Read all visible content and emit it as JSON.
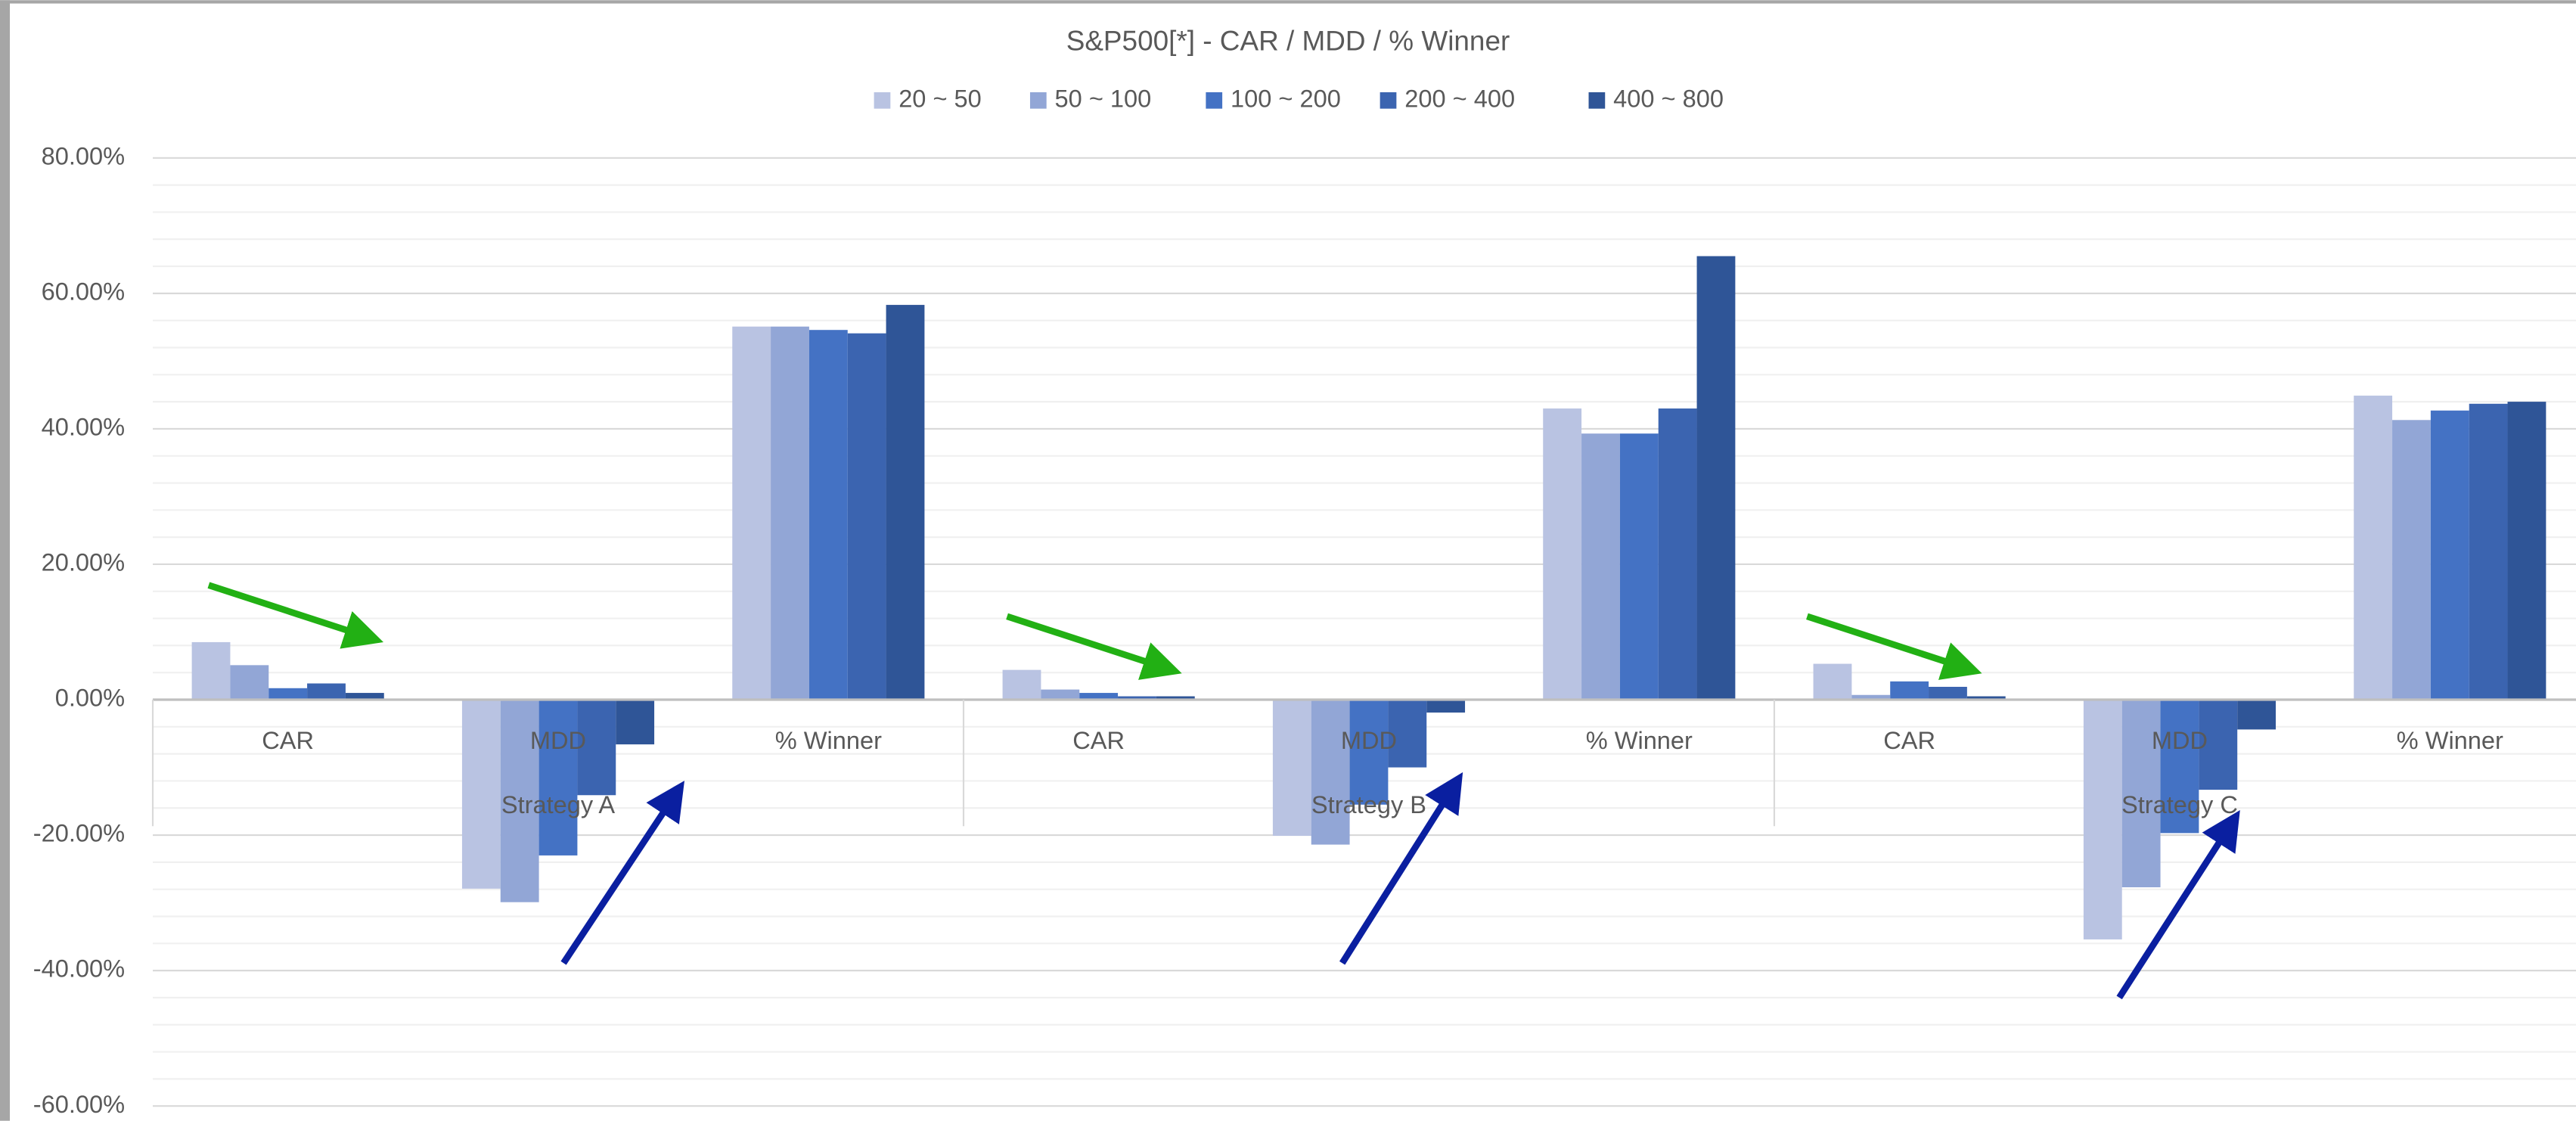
{
  "chart_data": {
    "type": "bar",
    "title": "S&P500[*] - CAR / MDD / % Winner",
    "groups": [
      "Strategy A",
      "Strategy B",
      "Strategy C"
    ],
    "categories": [
      "CAR",
      "MDD",
      "% Winner",
      "CAR",
      "MDD",
      "% Winner",
      "CAR",
      "MDD",
      "% Winner"
    ],
    "series": [
      {
        "name": "20 ~ 50",
        "color": "#b9c3e2",
        "values": [
          8.5,
          -27.9,
          55.1,
          4.4,
          -20.1,
          43.0,
          5.3,
          -35.4,
          44.9
        ]
      },
      {
        "name": "50 ~ 100",
        "color": "#92a6d6",
        "values": [
          5.1,
          -29.9,
          55.1,
          1.5,
          -21.4,
          39.3,
          0.7,
          -27.7,
          41.3
        ]
      },
      {
        "name": "100 ~ 200",
        "color": "#4472c4",
        "values": [
          1.7,
          -23.0,
          54.6,
          1.0,
          -15.5,
          39.3,
          2.7,
          -19.7,
          42.7
        ]
      },
      {
        "name": "200 ~ 400",
        "color": "#3b64b0",
        "values": [
          2.4,
          -14.1,
          54.1,
          0.5,
          -10.0,
          43.0,
          1.9,
          -13.3,
          43.7
        ]
      },
      {
        "name": "400 ~ 800",
        "color": "#2f5597",
        "values": [
          1.0,
          -6.6,
          58.3,
          0.5,
          -1.9,
          65.5,
          0.5,
          -4.4,
          44.0
        ]
      }
    ],
    "ylim": [
      -60,
      80
    ],
    "yticks": [
      {
        "value": -60,
        "label": "-60.00%"
      },
      {
        "value": -40,
        "label": "-40.00%"
      },
      {
        "value": -20,
        "label": "-20.00%"
      },
      {
        "value": 0,
        "label": "0.00%"
      },
      {
        "value": 20,
        "label": "20.00%"
      },
      {
        "value": 40,
        "label": "40.00%"
      },
      {
        "value": 60,
        "label": "60.00%"
      },
      {
        "value": 80,
        "label": "80.00%"
      }
    ],
    "grid": true,
    "legend": "top"
  }
}
